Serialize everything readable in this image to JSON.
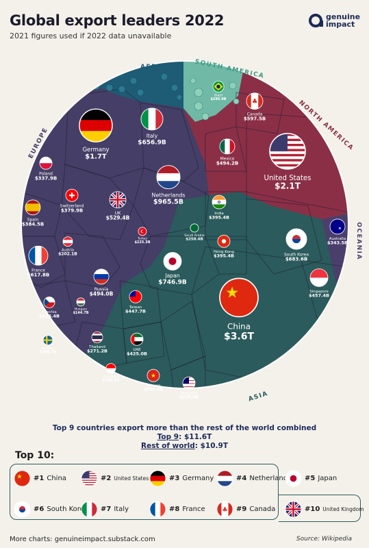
{
  "header": {
    "title": "Global export leaders 2022",
    "subtitle": "2021 figures used if 2022 data unavailable",
    "logo_line1": "genuine",
    "logo_line2": "impact"
  },
  "colors": {
    "background": "#f4f1eb",
    "europe": "#453e66",
    "asia": "#2b5b5c",
    "north_america": "#8b2f47",
    "south_america": "#6fb9a6",
    "africa": "#1e5b74",
    "oceania": "#4a3f6b",
    "region_label": "#8b2f47"
  },
  "chart_data": {
    "type": "voronoi-treemap",
    "title": "Global export leaders 2022",
    "unit": "USD",
    "regions": [
      {
        "name": "AFRICA",
        "countries": []
      },
      {
        "name": "SOUTH AMERICA",
        "countries": [
          {
            "name": "Brazil",
            "value": "$296.9B",
            "value_billion": 296.9
          }
        ]
      },
      {
        "name": "NORTH AMERICA",
        "countries": [
          {
            "name": "United States",
            "value": "$2.1T",
            "value_billion": 2100
          },
          {
            "name": "Canada",
            "value": "$597.5B",
            "value_billion": 597.5
          },
          {
            "name": "Mexico",
            "value": "$494.2B",
            "value_billion": 494.2
          }
        ]
      },
      {
        "name": "EUROPE",
        "countries": [
          {
            "name": "Germany",
            "value": "$1.7T",
            "value_billion": 1700
          },
          {
            "name": "Netherlands",
            "value": "$965.5B",
            "value_billion": 965.5
          },
          {
            "name": "Italy",
            "value": "$656.9B",
            "value_billion": 656.9
          },
          {
            "name": "France",
            "value": "$617.8B",
            "value_billion": 617.8
          },
          {
            "name": "UK",
            "value": "$529.4B",
            "value_billion": 529.4
          },
          {
            "name": "Russia",
            "value": "$494.0B",
            "value_billion": 494.0
          },
          {
            "name": "Switzerland",
            "value": "$379.9B",
            "value_billion": 379.9
          },
          {
            "name": "Spain",
            "value": "$384.5B",
            "value_billion": 384.5
          },
          {
            "name": "Poland",
            "value": "$337.9B",
            "value_billion": 337.9
          },
          {
            "name": "Czechia",
            "value": "$226.4B",
            "value_billion": 226.4
          },
          {
            "name": "Austria",
            "value": "$202.1B",
            "value_billion": 202.1
          },
          {
            "name": "Sweden",
            "value": "$188.7B",
            "value_billion": 188.7
          },
          {
            "name": "Hungary",
            "value": "$144.7B",
            "value_billion": 144.7
          }
        ]
      },
      {
        "name": "ASIA",
        "countries": [
          {
            "name": "China",
            "value": "$3.6T",
            "value_billion": 3600
          },
          {
            "name": "Japan",
            "value": "$746.9B",
            "value_billion": 746.9
          },
          {
            "name": "South Korea",
            "value": "$683.6B",
            "value_billion": 683.6
          },
          {
            "name": "Singapore",
            "value": "$457.4B",
            "value_billion": 457.4
          },
          {
            "name": "Taiwan",
            "value": "$447.7B",
            "value_billion": 447.7
          },
          {
            "name": "UAE",
            "value": "$425.0B",
            "value_billion": 425.0
          },
          {
            "name": "India",
            "value": "$395.4B",
            "value_billion": 395.4
          },
          {
            "name": "Hong Kong",
            "value": "$395.4B",
            "value_billion": 395.4
          },
          {
            "name": "Vietnam",
            "value": "$335.9B",
            "value_billion": 335.9
          },
          {
            "name": "Thailand",
            "value": "$271.2B",
            "value_billion": 271.2
          },
          {
            "name": "Saudi Arabia",
            "value": "$258.4B",
            "value_billion": 258.4
          },
          {
            "name": "Malaysia",
            "value": "$229.0B",
            "value_billion": 229.0
          },
          {
            "name": "Indonesia",
            "value": "$228.9B",
            "value_billion": 228.9
          },
          {
            "name": "Turkey",
            "value": "$225.3B",
            "value_billion": 225.3
          }
        ]
      },
      {
        "name": "OCEANIA",
        "countries": [
          {
            "name": "Australia",
            "value": "$343.5B",
            "value_billion": 343.5
          }
        ]
      }
    ]
  },
  "summary": {
    "line1_prefix": "Top 9 countries export more than the rest of the world ",
    "line1_bold": "combined",
    "top9_label": "Top 9",
    "top9_value": ": $11.6T",
    "rest_label": "Rest of world",
    "rest_value": ": $10.9T"
  },
  "top10": {
    "title": "Top 10:",
    "items": [
      {
        "rank": "#1",
        "name": "China",
        "flag": "china-flag"
      },
      {
        "rank": "#2",
        "name": "United States",
        "flag": "us-flag"
      },
      {
        "rank": "#3",
        "name": "Germany",
        "flag": "germany-flag"
      },
      {
        "rank": "#4",
        "name": "Netherlands",
        "flag": "netherlands-flag"
      },
      {
        "rank": "#5",
        "name": "Japan",
        "flag": "japan-flag"
      },
      {
        "rank": "#6",
        "name": "South Korea",
        "flag": "south-korea-flag"
      },
      {
        "rank": "#7",
        "name": "Italy",
        "flag": "italy-flag"
      },
      {
        "rank": "#8",
        "name": "France",
        "flag": "france-flag"
      },
      {
        "rank": "#9",
        "name": "Canada",
        "flag": "canada-flag"
      },
      {
        "rank": "#10",
        "name": "United Kingdom",
        "flag": "uk-flag"
      }
    ]
  },
  "footer": {
    "more_charts": "More charts: genuineimpact.substack.com",
    "source": "Source: Wikipedia"
  }
}
